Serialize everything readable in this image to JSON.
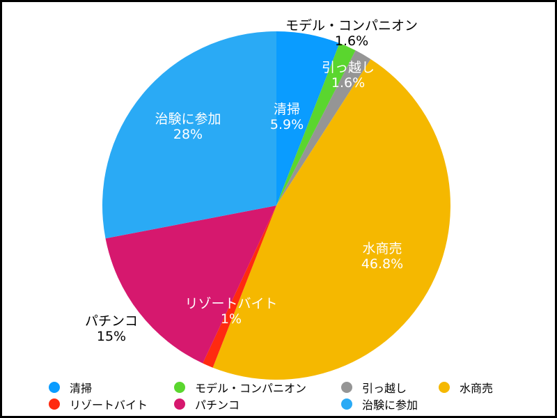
{
  "chart_data": {
    "type": "pie",
    "title": "",
    "start_angle_deg": 0,
    "direction": "clockwise",
    "slices": [
      {
        "label": "清掃",
        "value": 5.9,
        "value_text": "5.9%",
        "color": "#0a9cff",
        "label_color": "#ffffff"
      },
      {
        "label": "モデル・コンパニオン",
        "value": 1.6,
        "value_text": "1.6%",
        "color": "#5ad62e",
        "label_color": "#000000"
      },
      {
        "label": "引っ越し",
        "value": 1.6,
        "value_text": "1.6%",
        "color": "#959595",
        "label_color": "#ffffff"
      },
      {
        "label": "水商売",
        "value": 46.8,
        "value_text": "46.8%",
        "color": "#f5b800",
        "label_color": "#ffffff"
      },
      {
        "label": "リゾートバイト",
        "value": 1,
        "value_text": "1%",
        "color": "#ff2a10",
        "label_color": "#ffffff"
      },
      {
        "label": "パチンコ",
        "value": 15,
        "value_text": "15%",
        "color": "#d6186e",
        "label_color": "#000000"
      },
      {
        "label": "治験に参加",
        "value": 28,
        "value_text": "28%",
        "color": "#2aaaf5",
        "label_color": "#ffffff"
      }
    ]
  }
}
